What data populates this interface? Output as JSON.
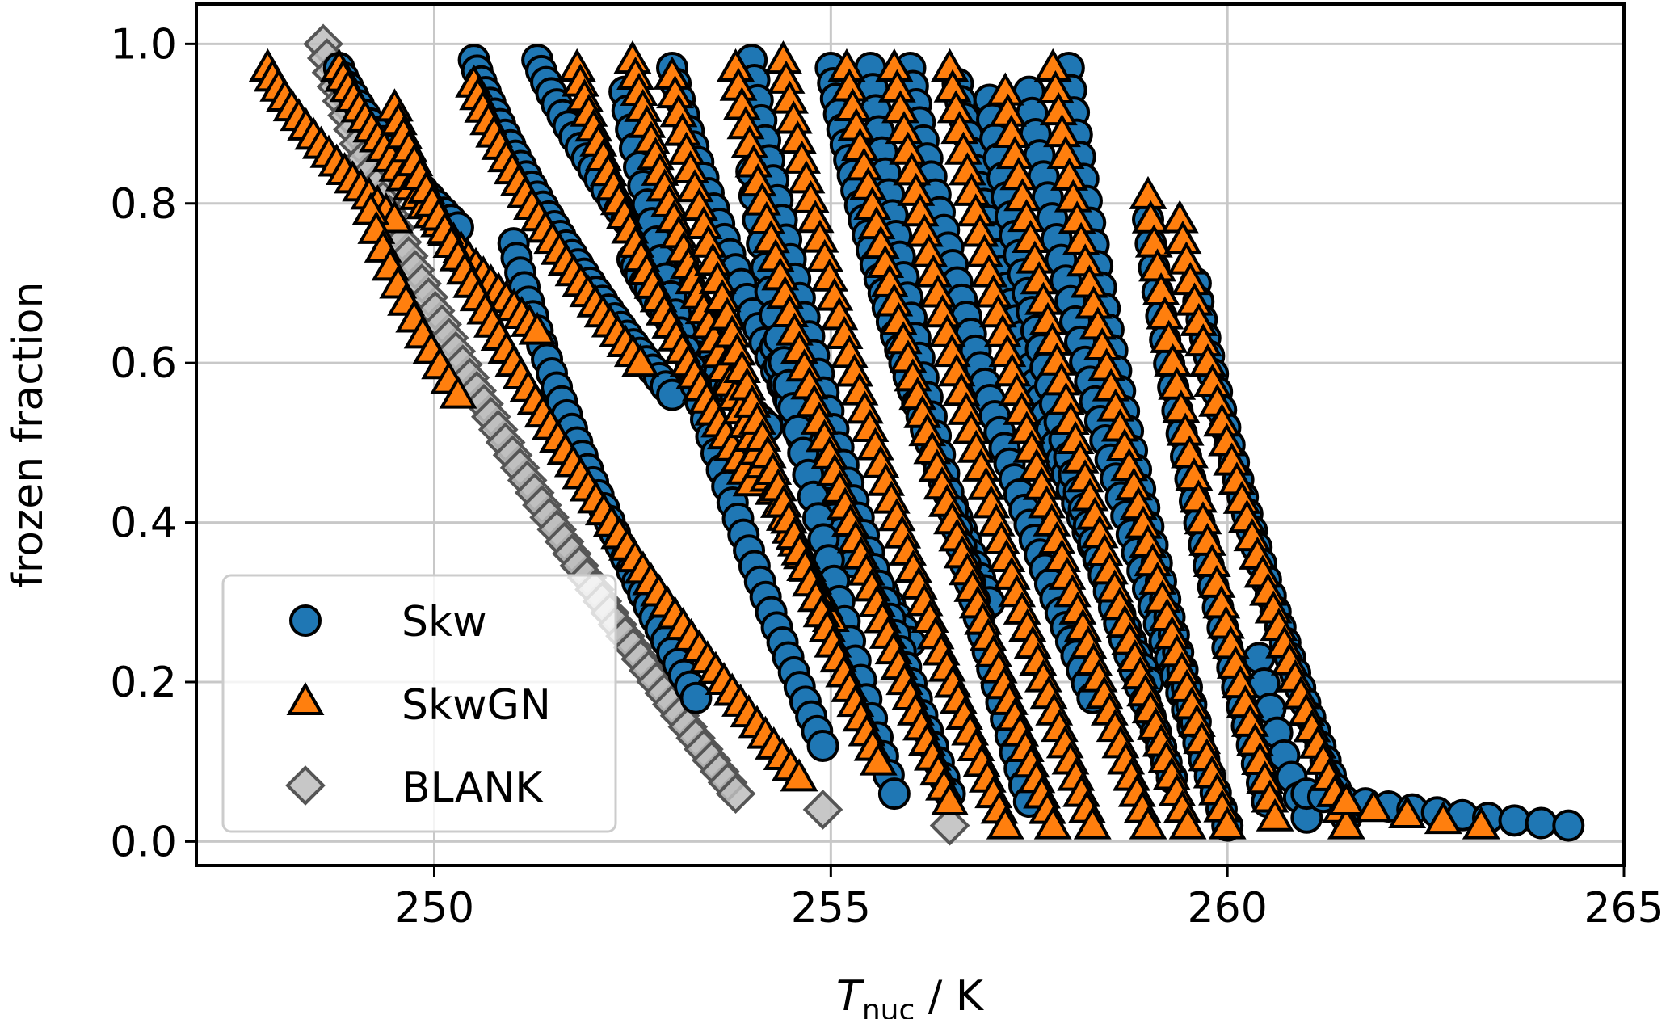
{
  "chart_data": {
    "type": "scatter",
    "xlabel": {
      "symbol": "T",
      "subscript": "nuc",
      "unit": " / K"
    },
    "ylabel": "frozen fraction",
    "xlim": [
      247,
      265
    ],
    "ylim": [
      -0.03,
      1.05
    ],
    "x_ticks": [
      250,
      255,
      260,
      265
    ],
    "y_ticks": [
      0.0,
      0.2,
      0.4,
      0.6,
      0.8,
      1.0
    ],
    "x_tick_labels": [
      "250",
      "255",
      "260",
      "265"
    ],
    "y_tick_labels": [
      "0.0",
      "0.2",
      "0.4",
      "0.6",
      "0.8",
      "1.0"
    ],
    "grid": true,
    "legend_position": "lower-left",
    "series": [
      {
        "name": "Skw",
        "marker": "circle",
        "color": "#1f77b4",
        "runs": [
          {
            "x0": 248.8,
            "x1": 250.3,
            "y0": 0.97,
            "y1": 0.77,
            "n": 20
          },
          {
            "x0": 250.5,
            "x1": 253.0,
            "y0": 0.98,
            "y1": 0.56,
            "n": 36
          },
          {
            "x0": 251.0,
            "x1": 253.3,
            "y0": 0.75,
            "y1": 0.18,
            "n": 36
          },
          {
            "x0": 251.3,
            "x1": 253.7,
            "y0": 0.98,
            "y1": 0.62,
            "n": 30
          },
          {
            "x0": 252.5,
            "x1": 254.2,
            "y0": 0.73,
            "y1": 0.52,
            "n": 25
          },
          {
            "x0": 252.4,
            "x1": 254.9,
            "y0": 0.94,
            "y1": 0.12,
            "n": 40
          },
          {
            "x0": 253.0,
            "x1": 256.0,
            "y0": 0.97,
            "y1": 0.25,
            "n": 42
          },
          {
            "x0": 254.0,
            "x1": 256.5,
            "y0": 0.98,
            "y1": 0.06,
            "n": 42
          },
          {
            "x0": 254.3,
            "x1": 255.3,
            "y0": 0.62,
            "y1": 0.35,
            "n": 14
          },
          {
            "x0": 254.0,
            "x1": 255.8,
            "y0": 0.84,
            "y1": 0.06,
            "n": 30
          },
          {
            "x0": 255.0,
            "x1": 257.0,
            "y0": 0.97,
            "y1": 0.3,
            "n": 40
          },
          {
            "x0": 255.5,
            "x1": 257.5,
            "y0": 0.97,
            "y1": 0.05,
            "n": 40
          },
          {
            "x0": 256.0,
            "x1": 258.3,
            "y0": 0.97,
            "y1": 0.18,
            "n": 40
          },
          {
            "x0": 256.6,
            "x1": 259.0,
            "y0": 0.95,
            "y1": 0.2,
            "n": 40
          },
          {
            "x0": 257.0,
            "x1": 259.3,
            "y0": 0.93,
            "y1": 0.08,
            "n": 40
          },
          {
            "x0": 257.5,
            "x1": 260.0,
            "y0": 0.94,
            "y1": 0.02,
            "n": 40
          },
          {
            "x0": 258.0,
            "x1": 259.6,
            "y0": 0.97,
            "y1": 0.15,
            "n": 34
          },
          {
            "x0": 259.0,
            "x1": 260.5,
            "y0": 0.78,
            "y1": 0.05,
            "n": 28
          },
          {
            "x0": 259.6,
            "x1": 261.5,
            "y0": 0.7,
            "y1": 0.03,
            "n": 34
          },
          {
            "x0": 260.4,
            "x1": 261.0,
            "y0": 0.23,
            "y1": 0.03,
            "n": 8
          },
          {
            "x0": 261.0,
            "x1": 264.3,
            "y0": 0.06,
            "y1": 0.02,
            "n": 12
          }
        ]
      },
      {
        "name": "SkwGN",
        "marker": "triangle",
        "color": "#ff7f0e",
        "runs": [
          {
            "x0": 247.9,
            "x1": 249.5,
            "y0": 0.97,
            "y1": 0.78,
            "n": 18
          },
          {
            "x0": 249.2,
            "x1": 250.3,
            "y0": 0.79,
            "y1": 0.56,
            "n": 12
          },
          {
            "x0": 248.8,
            "x1": 251.3,
            "y0": 0.97,
            "y1": 0.64,
            "n": 30
          },
          {
            "x0": 249.5,
            "x1": 254.6,
            "y0": 0.92,
            "y1": 0.08,
            "n": 56
          },
          {
            "x0": 250.5,
            "x1": 252.6,
            "y0": 0.95,
            "y1": 0.6,
            "n": 26
          },
          {
            "x0": 251.8,
            "x1": 254.0,
            "y0": 0.97,
            "y1": 0.45,
            "n": 32
          },
          {
            "x0": 252.5,
            "x1": 255.0,
            "y0": 0.98,
            "y1": 0.28,
            "n": 40
          },
          {
            "x0": 253.0,
            "x1": 255.6,
            "y0": 0.96,
            "y1": 0.1,
            "n": 42
          },
          {
            "x0": 253.8,
            "x1": 256.5,
            "y0": 0.97,
            "y1": 0.05,
            "n": 44
          },
          {
            "x0": 254.4,
            "x1": 257.2,
            "y0": 0.98,
            "y1": 0.02,
            "n": 44
          },
          {
            "x0": 255.2,
            "x1": 257.8,
            "y0": 0.97,
            "y1": 0.02,
            "n": 44
          },
          {
            "x0": 255.8,
            "x1": 258.3,
            "y0": 0.97,
            "y1": 0.02,
            "n": 42
          },
          {
            "x0": 256.5,
            "x1": 259.0,
            "y0": 0.97,
            "y1": 0.02,
            "n": 42
          },
          {
            "x0": 257.2,
            "x1": 259.5,
            "y0": 0.94,
            "y1": 0.02,
            "n": 40
          },
          {
            "x0": 257.8,
            "x1": 260.0,
            "y0": 0.97,
            "y1": 0.02,
            "n": 40
          },
          {
            "x0": 259.0,
            "x1": 260.6,
            "y0": 0.81,
            "y1": 0.03,
            "n": 30
          },
          {
            "x0": 259.4,
            "x1": 261.5,
            "y0": 0.78,
            "y1": 0.02,
            "n": 34
          },
          {
            "x0": 261.5,
            "x1": 263.2,
            "y0": 0.05,
            "y1": 0.02,
            "n": 5
          }
        ]
      },
      {
        "name": "BLANK",
        "marker": "diamond",
        "color": "#bdbdbd",
        "runs": [
          {
            "x0": 248.6,
            "x1": 253.8,
            "y0": 1.0,
            "y1": 0.06,
            "n": 60
          }
        ],
        "points": [
          {
            "x": 254.9,
            "y": 0.04
          },
          {
            "x": 256.5,
            "y": 0.02
          }
        ]
      }
    ]
  }
}
